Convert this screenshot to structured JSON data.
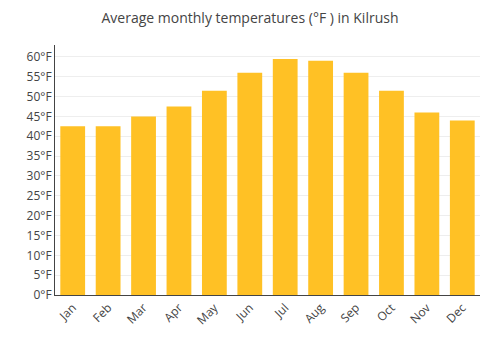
{
  "chart_data": {
    "type": "bar",
    "title": "Average monthly temperatures (°F ) in Kilrush",
    "categories": [
      "Jan",
      "Feb",
      "Mar",
      "Apr",
      "May",
      "Jun",
      "Jul",
      "Aug",
      "Sep",
      "Oct",
      "Nov",
      "Dec"
    ],
    "values": [
      42.5,
      42.5,
      45.0,
      47.5,
      51.5,
      56.0,
      59.5,
      59.0,
      56.0,
      51.5,
      46.0,
      44.0
    ],
    "color": "#FFC125",
    "ylim": [
      0,
      63
    ],
    "yticks": [
      {
        "value": 0,
        "label": "0°F"
      },
      {
        "value": 5,
        "label": "5°F"
      },
      {
        "value": 10,
        "label": "10°F"
      },
      {
        "value": 15,
        "label": "15°F"
      },
      {
        "value": 20,
        "label": "20°F"
      },
      {
        "value": 25,
        "label": "25°F"
      },
      {
        "value": 30,
        "label": "30°F"
      },
      {
        "value": 35,
        "label": "35°F"
      },
      {
        "value": 40,
        "label": "40°F"
      },
      {
        "value": 45,
        "label": "45°F"
      },
      {
        "value": 50,
        "label": "50°F"
      },
      {
        "value": 55,
        "label": "55°F"
      },
      {
        "value": 60,
        "label": "60°F"
      }
    ],
    "grid": true
  }
}
